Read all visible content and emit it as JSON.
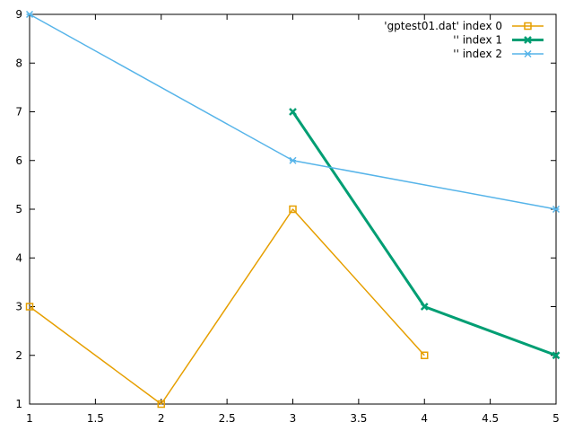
{
  "chart_data": {
    "type": "line",
    "title": "",
    "xlabel": "",
    "ylabel": "",
    "xlim": [
      1,
      5
    ],
    "ylim": [
      1,
      9
    ],
    "x_ticks": [
      "1",
      "1.5",
      "2",
      "2.5",
      "3",
      "3.5",
      "4",
      "4.5",
      "5"
    ],
    "y_ticks": [
      "1",
      "2",
      "3",
      "4",
      "5",
      "6",
      "7",
      "8",
      "9"
    ],
    "grid": false,
    "legend_position": "top-right",
    "series": [
      {
        "name": "'gptest01.dat' index 0",
        "marker": "square",
        "color": "#e69f00",
        "x": [
          1,
          2,
          3,
          4
        ],
        "y": [
          3,
          1,
          5,
          2
        ]
      },
      {
        "name": "'' index 1",
        "marker": "x",
        "color": "#009e73",
        "x": [
          3,
          4,
          5
        ],
        "y": [
          7,
          3,
          2
        ]
      },
      {
        "name": "'' index 2",
        "marker": "asterisk",
        "color": "#56b4e9",
        "x": [
          1,
          3,
          5
        ],
        "y": [
          9,
          6,
          5
        ]
      }
    ]
  }
}
